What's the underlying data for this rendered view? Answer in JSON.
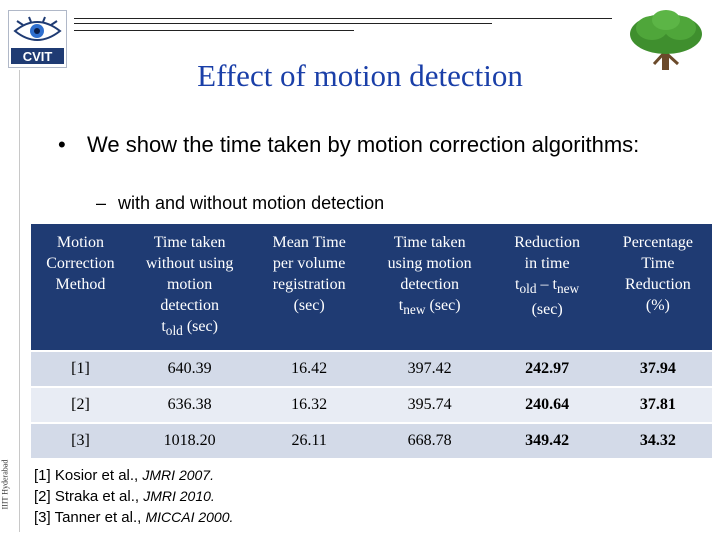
{
  "slide": {
    "logo_text": "CVIT",
    "title": "Effect of motion detection",
    "bullet": "We show the time taken by motion correction algorithms:",
    "sub_bullet": "with and without motion detection",
    "side_label": "IIIT Hyderabad"
  },
  "table": {
    "headers": [
      [
        "Motion",
        "Correction",
        "Method"
      ],
      [
        "Time taken",
        "without using",
        "motion",
        "detection",
        "t_old (sec)"
      ],
      [
        "Mean Time",
        "per volume",
        "registration",
        "(sec)"
      ],
      [
        "Time taken",
        "using motion",
        "detection",
        "t_new (sec)"
      ],
      [
        "Reduction",
        "in time",
        "t_old – t_new",
        "(sec)"
      ],
      [
        "Percentage",
        "Time",
        "Reduction",
        "(%)"
      ]
    ],
    "rows": [
      [
        "[1]",
        "640.39",
        "16.42",
        "397.42",
        "242.97",
        "37.94"
      ],
      [
        "[2]",
        "636.38",
        "16.32",
        "395.74",
        "240.64",
        "37.81"
      ],
      [
        "[3]",
        "1018.20",
        "26.11",
        "668.78",
        "349.42",
        "34.32"
      ]
    ]
  },
  "references": [
    {
      "prefix": "[1] Kosior et al., ",
      "venue": "JMRI 2007."
    },
    {
      "prefix": "[2] Straka et al., ",
      "venue": "JMRI 2010."
    },
    {
      "prefix": "[3] Tanner et al., ",
      "venue": "MICCAI 2000."
    }
  ],
  "colors": {
    "title": "#1a3fa8",
    "header_bg": "#1f3b73",
    "row_dark": "#d3dae8",
    "row_light": "#e8ecf4"
  }
}
